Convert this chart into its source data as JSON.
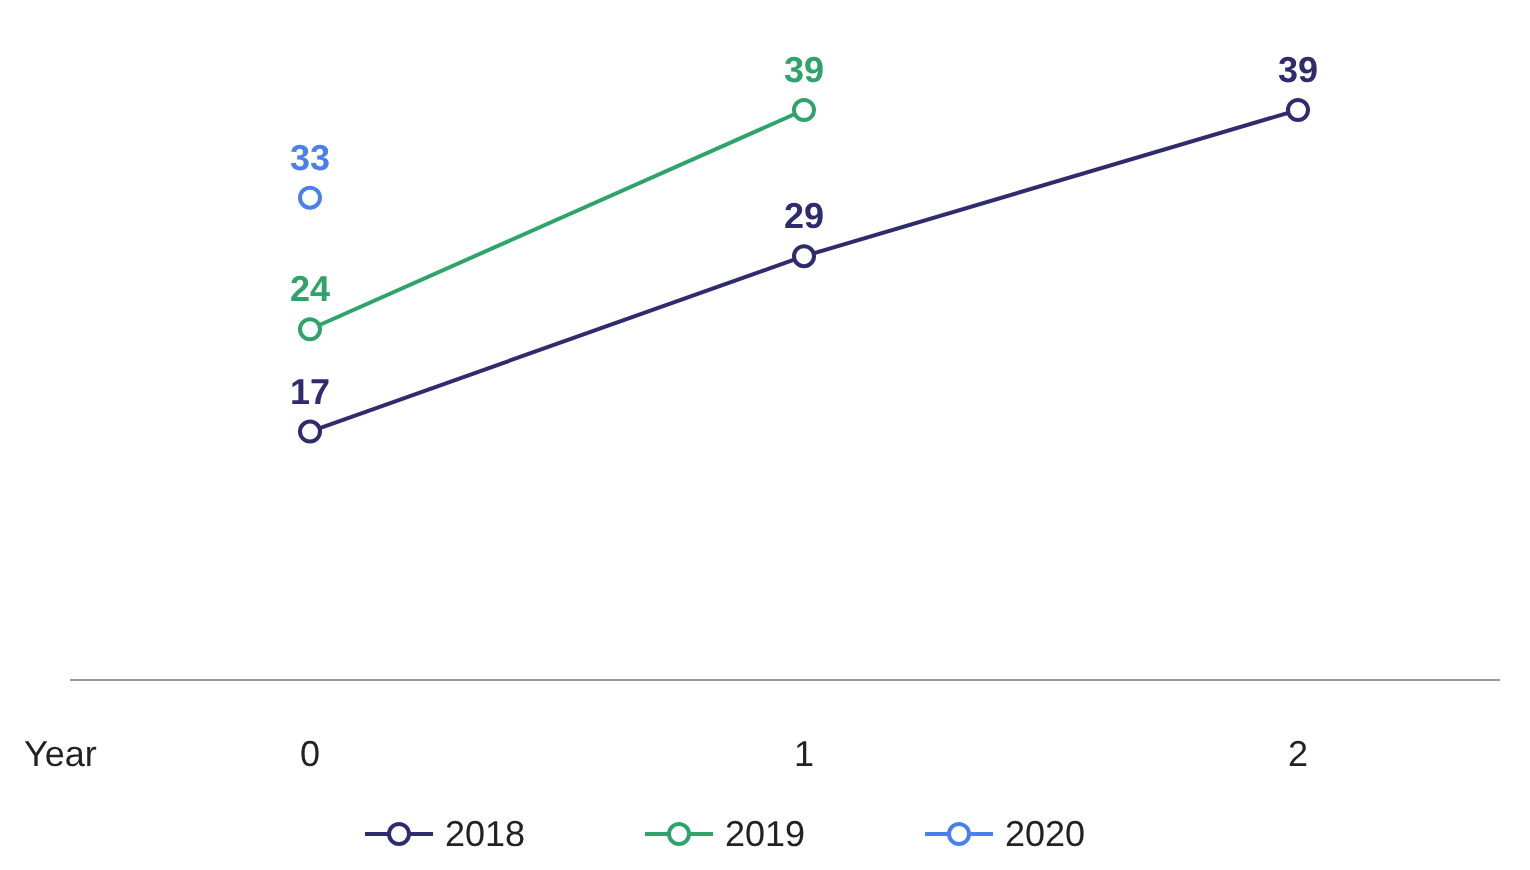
{
  "chart_data": {
    "type": "line",
    "xlabel": "Year",
    "categories": [
      "0",
      "1",
      "2"
    ],
    "series": [
      {
        "name": "2018",
        "color": "#2e2b6e",
        "values": [
          17,
          29,
          39
        ]
      },
      {
        "name": "2019",
        "color": "#2ea36a",
        "values": [
          24,
          39,
          null
        ]
      },
      {
        "name": "2020",
        "color": "#4a7ff0",
        "values": [
          33,
          null,
          null
        ]
      }
    ],
    "data_labels": true,
    "marker": "circle",
    "line_style": "solid",
    "legend": "bottom"
  }
}
